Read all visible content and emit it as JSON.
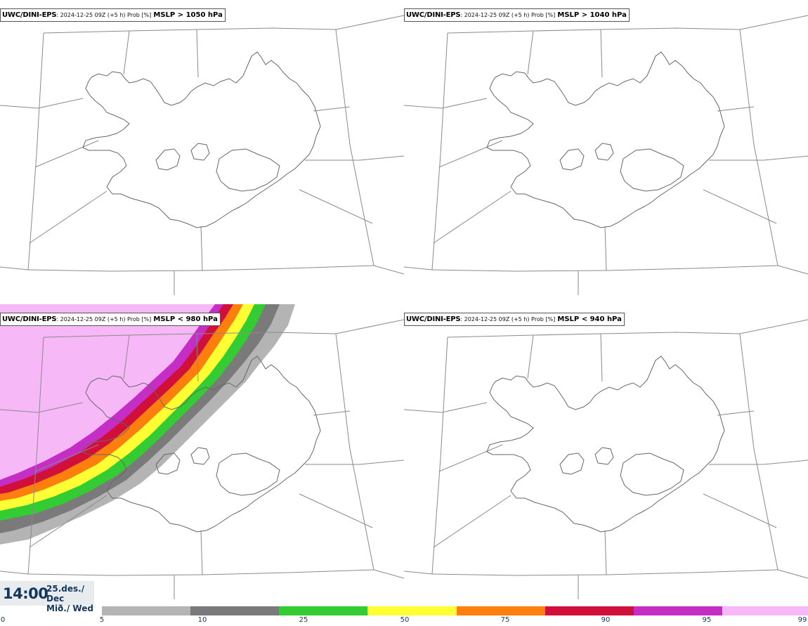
{
  "panels": [
    {
      "model": "UWC/DINI-EPS",
      "meta": ": 2024-12-25 09Z (+5 h) Prob [%]",
      "threshold": "MSLP > 1050 hPa"
    },
    {
      "model": "UWC/DINI-EPS",
      "meta": ": 2024-12-25 09Z (+5 h) Prob [%]",
      "threshold": "MSLP > 1040 hPa"
    },
    {
      "model": "UWC/DINI-EPS",
      "meta": ": 2024-12-25 09Z (+5 h) Prob [%]",
      "threshold": "MSLP < 980 hPa"
    },
    {
      "model": "UWC/DINI-EPS",
      "meta": ": 2024-12-25 09Z (+5 h) Prob [%]",
      "threshold": "MSLP < 940 hPa"
    }
  ],
  "valid_time": {
    "time": "14:00",
    "date_line1": "25.des./ Dec",
    "date_line2": "Mið./ Wed"
  },
  "colorbar": {
    "labels": [
      "0",
      "5",
      "10",
      "25",
      "50",
      "75",
      "90",
      "95",
      "99"
    ],
    "colors": [
      "#b4b4b4",
      "#7a7a7a",
      "#33cc33",
      "#ffff33",
      "#ff7f0e",
      "#d0103a",
      "#c52ec5",
      "#f7b8f7"
    ]
  }
}
